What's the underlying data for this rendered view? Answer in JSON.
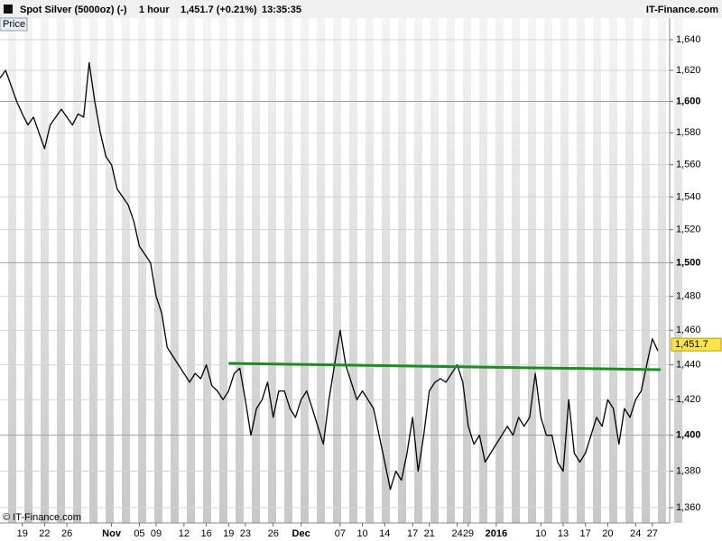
{
  "header": {
    "title": "Spot Silver (5000oz) (-)",
    "interval": "1 hour",
    "quote": "1,451.7 (+0.21%)",
    "time": "13:35:35",
    "brand": "IT-Finance.com"
  },
  "panel_label": "Price",
  "copyright": "© IT-Finance.com",
  "chart_data": {
    "type": "line",
    "log": true,
    "ylim": [
      1351.7,
      1649.5
    ],
    "yticks": [
      {
        "value": 1360,
        "label": "1,360"
      },
      {
        "value": 1380,
        "label": "1,380"
      },
      {
        "value": 1400,
        "label": "1,400"
      },
      {
        "value": 1420,
        "label": "1,420"
      },
      {
        "value": 1440,
        "label": "1,440"
      },
      {
        "value": 1460,
        "label": "1,460"
      },
      {
        "value": 1480,
        "label": "1,480"
      },
      {
        "value": 1500,
        "label": "1,500"
      },
      {
        "value": 1520,
        "label": "1,520"
      },
      {
        "value": 1540,
        "label": "1,540"
      },
      {
        "value": 1560,
        "label": "1,560"
      },
      {
        "value": 1580,
        "label": "1,580"
      },
      {
        "value": 1600,
        "label": "1,600"
      },
      {
        "value": 1620,
        "label": "1,620"
      },
      {
        "value": 1640,
        "label": "1,640"
      }
    ],
    "categories": [
      null,
      null,
      null,
      null,
      "19",
      null,
      null,
      null,
      "22",
      null,
      null,
      null,
      "26",
      null,
      null,
      null,
      null,
      null,
      null,
      null,
      "Nov",
      null,
      null,
      null,
      null,
      "05",
      null,
      null,
      "09",
      null,
      null,
      null,
      null,
      "12",
      null,
      null,
      null,
      "16",
      null,
      null,
      null,
      "19",
      null,
      null,
      "23",
      null,
      null,
      null,
      null,
      "26",
      null,
      null,
      null,
      null,
      "Dec",
      null,
      null,
      null,
      null,
      null,
      null,
      "07",
      null,
      null,
      null,
      "10",
      null,
      null,
      null,
      "14",
      null,
      null,
      null,
      null,
      "17",
      null,
      null,
      "21",
      null,
      null,
      null,
      null,
      "24",
      null,
      "29",
      null,
      null,
      null,
      null,
      "2016",
      null,
      null,
      null,
      null,
      null,
      null,
      null,
      "10",
      null,
      null,
      null,
      "13",
      null,
      null,
      null,
      "17",
      null,
      null,
      null,
      "20",
      null,
      null,
      null,
      null,
      "24",
      null,
      null,
      "27",
      null
    ],
    "series": [
      {
        "color": "#000000",
        "values": [
          1615,
          1620,
          1610,
          1600,
          1592,
          1585,
          1590,
          1580,
          1570,
          1585,
          1590,
          1595,
          1590,
          1585,
          1592,
          1590,
          1625,
          1600,
          1580,
          1565,
          1560,
          1545,
          1540,
          1535,
          1525,
          1510,
          1505,
          1500,
          1480,
          1470,
          1450,
          1445,
          1440,
          1435,
          1430,
          1435,
          1432,
          1440,
          1428,
          1425,
          1420,
          1425,
          1435,
          1438,
          1420,
          1400,
          1415,
          1420,
          1430,
          1410,
          1425,
          1425,
          1415,
          1410,
          1420,
          1425,
          1415,
          1405,
          1395,
          1420,
          1440,
          1460,
          1440,
          1430,
          1420,
          1425,
          1420,
          1415,
          1400,
          1385,
          1370,
          1380,
          1375,
          1390,
          1410,
          1380,
          1400,
          1425,
          1430,
          1432,
          1430,
          1435,
          1440,
          1430,
          1405,
          1395,
          1400,
          1385,
          1390,
          1395,
          1400,
          1405,
          1400,
          1410,
          1405,
          1410,
          1435,
          1410,
          1400,
          1400,
          1385,
          1380,
          1420,
          1390,
          1385,
          1390,
          1400,
          1410,
          1405,
          1420,
          1415,
          1395,
          1415,
          1410,
          1420,
          1425,
          1440,
          1455,
          1448
        ]
      }
    ],
    "trendline": {
      "color": "#1e8c1e",
      "from": 41,
      "to": 118,
      "values": [
        1440.8,
        1437.2
      ]
    },
    "last_price": {
      "value": 1451.7,
      "label": "1,451.7",
      "color": "#ffe34d"
    }
  }
}
